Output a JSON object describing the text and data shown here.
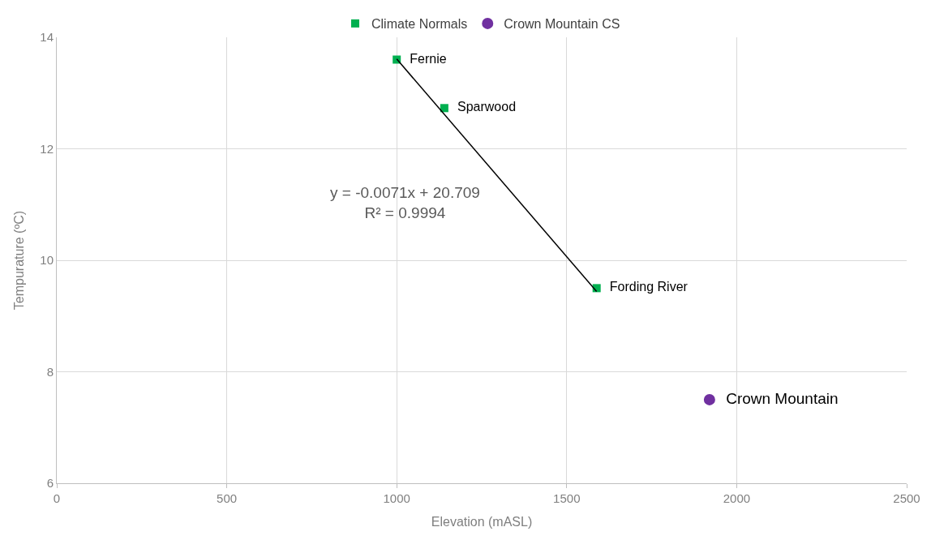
{
  "chart_data": {
    "type": "scatter",
    "xlabel": "Elevation (mASL)",
    "ylabel": "Tempurature (ºC)",
    "xlim": [
      0,
      2500
    ],
    "xticks": [
      0,
      500,
      1000,
      1500,
      2000,
      2500
    ],
    "ylim": [
      6,
      14
    ],
    "yticks": [
      6,
      8,
      10,
      12,
      14
    ],
    "grid": true,
    "legend": "top",
    "annotations": [
      "y = -0.0071x + 20.709\nR² = 0.9994"
    ],
    "series": [
      {
        "name": "Climate Normals",
        "color": "#00b050",
        "marker": "square",
        "x": [
          1000,
          1140,
          1588
        ],
        "values": [
          13.6,
          12.73,
          9.5
        ],
        "value_labels": [
          "Fernie",
          "Sparwood",
          "Fording River"
        ]
      },
      {
        "name": "Crown Mountain CS",
        "color": "#7030a0",
        "marker": "circle",
        "x": [
          1920
        ],
        "values": [
          7.5
        ],
        "value_labels": [
          "Crown Mountain"
        ]
      },
      {
        "type": "line",
        "color": "#000000",
        "x": [
          1000,
          1588
        ],
        "values": [
          13.61,
          9.44
        ]
      }
    ]
  }
}
